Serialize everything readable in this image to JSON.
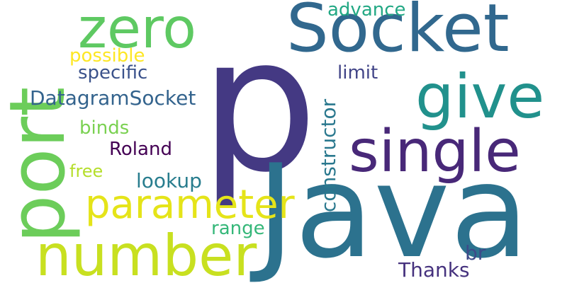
{
  "words": [
    {
      "id": "p",
      "text": "p",
      "color": "#443983"
    },
    {
      "id": "java",
      "text": "Java",
      "color": "#2c728e"
    },
    {
      "id": "socket",
      "text": "Socket",
      "color": "#31688e"
    },
    {
      "id": "zero",
      "text": "zero",
      "color": "#5ec962"
    },
    {
      "id": "port",
      "text": "port",
      "color": "#6ccd5a"
    },
    {
      "id": "give",
      "text": "give",
      "color": "#21918c"
    },
    {
      "id": "single",
      "text": "single",
      "color": "#482878"
    },
    {
      "id": "parameter",
      "text": "parameter",
      "color": "#e5e419"
    },
    {
      "id": "number",
      "text": "number",
      "color": "#c8e020"
    },
    {
      "id": "constructor",
      "text": "constructor",
      "color": "#2a788e"
    },
    {
      "id": "advance",
      "text": "advance",
      "color": "#22a884"
    },
    {
      "id": "possible",
      "text": "possible",
      "color": "#fde725"
    },
    {
      "id": "specific",
      "text": "specific",
      "color": "#3b528b"
    },
    {
      "id": "limit",
      "text": "limit",
      "color": "#414487"
    },
    {
      "id": "datagramsocket",
      "text": "DatagramSocket",
      "color": "#33638d"
    },
    {
      "id": "binds",
      "text": "binds",
      "color": "#7ad151"
    },
    {
      "id": "roland",
      "text": "Roland",
      "color": "#440154"
    },
    {
      "id": "free",
      "text": "free",
      "color": "#b5de2b"
    },
    {
      "id": "lookup",
      "text": "lookup",
      "color": "#287d8e"
    },
    {
      "id": "range",
      "text": "range",
      "color": "#35b779"
    },
    {
      "id": "br",
      "text": "br",
      "color": "#3e4a89"
    },
    {
      "id": "thanks",
      "text": "Thanks",
      "color": "#46327e"
    }
  ]
}
